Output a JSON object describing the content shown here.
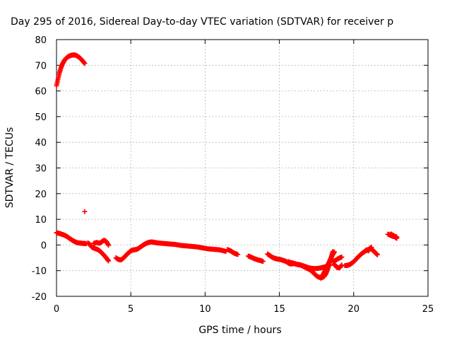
{
  "chart_data": {
    "type": "scatter",
    "title": "Day 295 of 2016, Sidereal Day-to-day VTEC variation (SDTVAR) for receiver p",
    "xlabel": "GPS time / hours",
    "ylabel": "SDTVAR / TECUs",
    "xlim": [
      0,
      25
    ],
    "ylim": [
      -20,
      80
    ],
    "x_ticks": [
      "0",
      "5",
      "10",
      "15",
      "20",
      "25"
    ],
    "y_ticks": [
      "-20",
      "-10",
      "0",
      "10",
      "20",
      "30",
      "40",
      "50",
      "60",
      "70",
      "80"
    ],
    "x_tick_values": [
      0,
      5,
      10,
      15,
      20,
      25
    ],
    "y_tick_values": [
      -20,
      -10,
      0,
      10,
      20,
      30,
      40,
      50,
      60,
      70,
      80
    ],
    "grid": true,
    "marker": "plus",
    "series": [
      {
        "color": "#ff0000",
        "segments": [
          [
            [
              0.0,
              62.0
            ],
            [
              0.1,
              64.5
            ],
            [
              0.2,
              67.0
            ],
            [
              0.3,
              69.0
            ],
            [
              0.4,
              70.5
            ],
            [
              0.5,
              71.6
            ],
            [
              0.6,
              72.4
            ],
            [
              0.7,
              73.0
            ],
            [
              0.8,
              73.4
            ],
            [
              0.9,
              73.7
            ],
            [
              1.0,
              73.9
            ],
            [
              1.1,
              74.0
            ],
            [
              1.2,
              74.0
            ],
            [
              1.3,
              73.9
            ],
            [
              1.4,
              73.6
            ],
            [
              1.5,
              73.2
            ],
            [
              1.6,
              72.7
            ],
            [
              1.7,
              72.1
            ],
            [
              1.8,
              71.4
            ],
            [
              1.9,
              70.7
            ]
          ],
          [
            [
              1.9,
              13.0
            ]
          ],
          [
            [
              0.0,
              4.8
            ],
            [
              0.1,
              4.6
            ],
            [
              0.2,
              4.5
            ],
            [
              0.3,
              4.3
            ],
            [
              0.4,
              4.1
            ],
            [
              0.5,
              3.9
            ],
            [
              0.6,
              3.6
            ],
            [
              0.7,
              3.3
            ],
            [
              0.8,
              2.9
            ],
            [
              0.9,
              2.5
            ],
            [
              1.0,
              2.1
            ],
            [
              1.1,
              1.7
            ],
            [
              1.2,
              1.4
            ],
            [
              1.3,
              1.1
            ],
            [
              1.4,
              0.9
            ],
            [
              1.5,
              0.8
            ],
            [
              1.6,
              0.7
            ],
            [
              1.7,
              0.7
            ],
            [
              1.8,
              0.6
            ],
            [
              1.9,
              0.6
            ],
            [
              2.0,
              0.5
            ]
          ],
          [
            [
              2.1,
              0.8
            ],
            [
              2.2,
              0.5
            ],
            [
              2.3,
              -0.3
            ],
            [
              2.4,
              -0.9
            ],
            [
              2.5,
              -1.2
            ],
            [
              2.6,
              -1.4
            ],
            [
              2.7,
              -1.6
            ],
            [
              2.8,
              -1.9
            ],
            [
              2.9,
              -2.3
            ],
            [
              3.0,
              -2.8
            ],
            [
              3.1,
              -3.4
            ],
            [
              3.2,
              -4.0
            ],
            [
              3.3,
              -4.7
            ],
            [
              3.4,
              -5.4
            ],
            [
              3.5,
              -6.2
            ]
          ],
          [
            [
              2.5,
              0.6
            ],
            [
              2.6,
              0.8
            ],
            [
              2.7,
              1.0
            ],
            [
              2.8,
              0.8
            ],
            [
              2.9,
              0.7
            ],
            [
              3.0,
              1.0
            ],
            [
              3.1,
              1.5
            ],
            [
              3.2,
              1.8
            ],
            [
              3.3,
              1.6
            ],
            [
              3.4,
              0.9
            ],
            [
              3.5,
              -0.1
            ]
          ],
          [
            [
              4.0,
              -5.0
            ],
            [
              4.1,
              -5.4
            ],
            [
              4.2,
              -5.7
            ],
            [
              4.3,
              -5.8
            ],
            [
              4.4,
              -5.6
            ],
            [
              4.5,
              -5.1
            ],
            [
              4.6,
              -4.5
            ],
            [
              4.7,
              -3.9
            ],
            [
              4.8,
              -3.3
            ],
            [
              4.9,
              -2.8
            ],
            [
              5.0,
              -2.3
            ],
            [
              5.1,
              -2.0
            ],
            [
              5.2,
              -1.9
            ],
            [
              5.3,
              -1.8
            ],
            [
              5.4,
              -1.7
            ],
            [
              5.5,
              -1.4
            ],
            [
              5.6,
              -1.0
            ],
            [
              5.7,
              -0.6
            ],
            [
              5.8,
              -0.2
            ],
            [
              5.9,
              0.2
            ],
            [
              6.0,
              0.5
            ],
            [
              6.1,
              0.8
            ],
            [
              6.2,
              1.0
            ],
            [
              6.3,
              1.1
            ],
            [
              6.4,
              1.2
            ],
            [
              6.5,
              1.1
            ],
            [
              6.6,
              1.0
            ],
            [
              6.7,
              0.9
            ],
            [
              6.8,
              0.8
            ],
            [
              7.0,
              0.7
            ],
            [
              7.2,
              0.6
            ],
            [
              7.4,
              0.5
            ],
            [
              7.6,
              0.4
            ],
            [
              7.8,
              0.3
            ],
            [
              8.0,
              0.2
            ],
            [
              8.2,
              0.0
            ],
            [
              8.4,
              -0.2
            ],
            [
              8.6,
              -0.3
            ],
            [
              8.8,
              -0.4
            ],
            [
              9.0,
              -0.5
            ],
            [
              9.2,
              -0.6
            ],
            [
              9.4,
              -0.7
            ],
            [
              9.6,
              -0.9
            ],
            [
              9.8,
              -1.1
            ],
            [
              10.0,
              -1.3
            ],
            [
              10.2,
              -1.5
            ],
            [
              10.4,
              -1.6
            ],
            [
              10.6,
              -1.7
            ],
            [
              10.8,
              -1.8
            ],
            [
              11.0,
              -1.9
            ],
            [
              11.2,
              -2.2
            ],
            [
              11.4,
              -2.5
            ]
          ],
          [
            [
              11.5,
              -1.8
            ],
            [
              11.6,
              -2.0
            ],
            [
              11.7,
              -2.2
            ],
            [
              11.8,
              -2.6
            ],
            [
              11.9,
              -3.0
            ],
            [
              12.0,
              -3.3
            ],
            [
              12.1,
              -3.5
            ],
            [
              12.2,
              -3.7
            ]
          ],
          [
            [
              12.9,
              -4.3
            ],
            [
              13.0,
              -4.5
            ],
            [
              13.1,
              -4.8
            ],
            [
              13.2,
              -5.0
            ],
            [
              13.3,
              -5.3
            ],
            [
              13.4,
              -5.5
            ],
            [
              13.5,
              -5.7
            ],
            [
              13.6,
              -5.9
            ],
            [
              13.7,
              -6.0
            ],
            [
              13.8,
              -6.2
            ],
            [
              13.9,
              -6.4
            ]
          ],
          [
            [
              14.2,
              -3.5
            ],
            [
              14.3,
              -3.9
            ],
            [
              14.4,
              -4.3
            ],
            [
              14.5,
              -4.7
            ],
            [
              14.6,
              -5.0
            ],
            [
              14.7,
              -5.2
            ],
            [
              14.8,
              -5.4
            ],
            [
              14.9,
              -5.5
            ],
            [
              15.0,
              -5.6
            ],
            [
              15.1,
              -5.7
            ],
            [
              15.2,
              -5.9
            ],
            [
              15.3,
              -6.1
            ],
            [
              15.4,
              -6.3
            ],
            [
              15.5,
              -6.6
            ],
            [
              15.6,
              -7.0
            ],
            [
              15.7,
              -7.3
            ],
            [
              15.8,
              -7.4
            ],
            [
              15.9,
              -7.3
            ],
            [
              16.0,
              -7.2
            ],
            [
              16.1,
              -7.4
            ],
            [
              16.2,
              -7.6
            ],
            [
              16.3,
              -7.7
            ],
            [
              16.4,
              -7.8
            ],
            [
              16.5,
              -8.0
            ],
            [
              16.6,
              -8.3
            ],
            [
              16.7,
              -8.6
            ],
            [
              16.8,
              -8.9
            ],
            [
              16.9,
              -9.2
            ],
            [
              17.0,
              -9.5
            ],
            [
              17.1,
              -9.8
            ],
            [
              17.2,
              -10.3
            ],
            [
              17.3,
              -10.9
            ],
            [
              17.4,
              -11.5
            ],
            [
              17.5,
              -12.0
            ],
            [
              17.6,
              -12.4
            ],
            [
              17.7,
              -12.6
            ],
            [
              17.8,
              -12.7
            ],
            [
              17.9,
              -12.6
            ],
            [
              18.0,
              -12.3
            ],
            [
              18.1,
              -11.5
            ],
            [
              18.2,
              -10.2
            ],
            [
              18.3,
              -8.5
            ],
            [
              18.4,
              -6.5
            ],
            [
              18.5,
              -4.5
            ],
            [
              18.6,
              -2.5
            ]
          ],
          [
            [
              15.6,
              -6.5
            ],
            [
              15.7,
              -6.8
            ],
            [
              15.8,
              -6.9
            ],
            [
              15.9,
              -7.0
            ],
            [
              16.0,
              -7.3
            ],
            [
              16.2,
              -7.5
            ],
            [
              16.4,
              -7.7
            ],
            [
              16.6,
              -8.1
            ],
            [
              16.8,
              -8.5
            ],
            [
              17.0,
              -8.9
            ],
            [
              17.2,
              -9.1
            ],
            [
              17.4,
              -9.2
            ],
            [
              17.6,
              -9.1
            ],
            [
              17.8,
              -8.9
            ],
            [
              18.0,
              -8.6
            ],
            [
              18.2,
              -8.3
            ],
            [
              18.4,
              -7.9
            ]
          ],
          [
            [
              17.8,
              -13.0
            ],
            [
              17.9,
              -12.0
            ],
            [
              18.0,
              -10.8
            ],
            [
              18.1,
              -9.6
            ],
            [
              18.2,
              -8.4
            ],
            [
              18.3,
              -7.2
            ],
            [
              18.4,
              -6.0
            ],
            [
              18.5,
              -4.8
            ],
            [
              18.6,
              -3.6
            ],
            [
              18.7,
              -2.7
            ]
          ],
          [
            [
              18.7,
              -7.5
            ],
            [
              18.8,
              -8.3
            ],
            [
              18.9,
              -8.8
            ],
            [
              19.0,
              -8.9
            ],
            [
              19.1,
              -8.6
            ],
            [
              19.2,
              -7.8
            ]
          ],
          [
            [
              18.6,
              -6.5
            ],
            [
              18.7,
              -6.2
            ],
            [
              18.8,
              -5.9
            ],
            [
              18.9,
              -5.5
            ],
            [
              19.0,
              -5.2
            ],
            [
              19.1,
              -4.9
            ],
            [
              19.2,
              -4.7
            ]
          ],
          [
            [
              19.4,
              -8.0
            ],
            [
              19.5,
              -8.0
            ],
            [
              19.6,
              -7.9
            ],
            [
              19.7,
              -7.7
            ],
            [
              19.8,
              -7.4
            ],
            [
              19.9,
              -7.0
            ],
            [
              20.0,
              -6.5
            ],
            [
              20.1,
              -5.9
            ],
            [
              20.2,
              -5.3
            ],
            [
              20.3,
              -4.7
            ],
            [
              20.4,
              -4.1
            ],
            [
              20.5,
              -3.6
            ],
            [
              20.6,
              -3.1
            ],
            [
              20.7,
              -2.7
            ],
            [
              20.8,
              -2.3
            ],
            [
              20.9,
              -2.0
            ],
            [
              21.0,
              -1.7
            ],
            [
              21.1,
              -1.5
            ],
            [
              21.2,
              -1.6
            ],
            [
              21.3,
              -2.1
            ],
            [
              21.4,
              -2.7
            ],
            [
              21.5,
              -3.3
            ],
            [
              21.6,
              -3.8
            ]
          ],
          [
            [
              20.8,
              -2.1
            ],
            [
              20.9,
              -1.9
            ],
            [
              21.0,
              -2.3
            ],
            [
              21.1,
              -1.2
            ],
            [
              21.2,
              -0.9
            ]
          ],
          [
            [
              22.3,
              4.2
            ],
            [
              22.4,
              4.0
            ],
            [
              22.5,
              3.7
            ],
            [
              22.6,
              3.4
            ],
            [
              22.7,
              3.3
            ],
            [
              22.8,
              3.3
            ],
            [
              22.9,
              3.1
            ]
          ],
          [
            [
              22.5,
              4.3
            ],
            [
              22.6,
              3.9
            ],
            [
              22.7,
              3.6
            ],
            [
              22.8,
              3.0
            ],
            [
              22.9,
              2.6
            ]
          ]
        ]
      }
    ]
  }
}
